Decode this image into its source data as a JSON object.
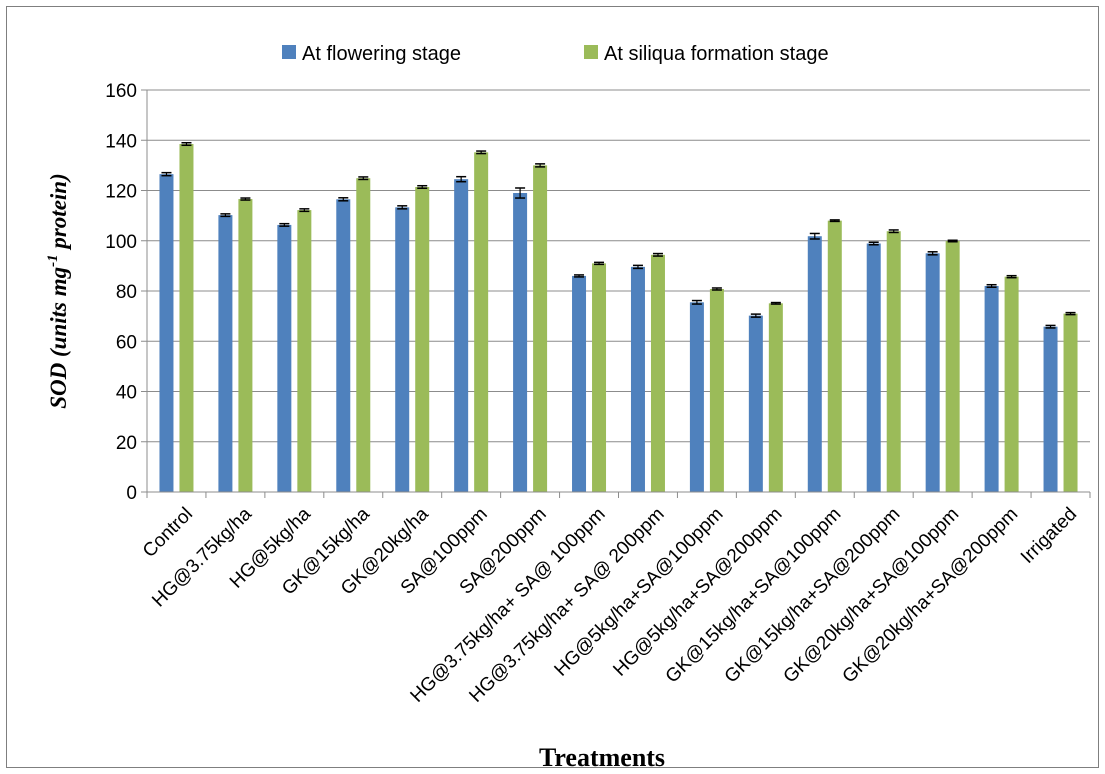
{
  "chart_data": {
    "type": "bar",
    "title": "",
    "xlabel": "Treatments",
    "ylabel_main": "SOD (units mg",
    "ylabel_sup": "-1",
    "ylabel_tail": " protein)",
    "ylim": [
      0,
      160
    ],
    "yticks": [
      0,
      20,
      40,
      60,
      80,
      100,
      120,
      140,
      160
    ],
    "grid": true,
    "legend_position": "top",
    "categories": [
      "Control",
      "HG@3.75kg/ha",
      "HG@5kg/ha",
      "GK@15kg/ha",
      "GK@20kg/ha",
      "SA@100ppm",
      "SA@200ppm",
      "HG@3.75kg/ha+ SA@ 100ppm",
      "HG@3.75kg/ha+ SA@ 200ppm",
      "HG@5kg/ha+SA@100ppm",
      "HG@5kg/ha+SA@200ppm",
      "GK@15kg/ha+SA@100ppm",
      "GK@15kg/ha+SA@200ppm",
      "GK@20kg/ha+SA@100ppm",
      "GK@20kg/ha+SA@200ppm",
      "Irrigated"
    ],
    "series": [
      {
        "name": "At flowering stage",
        "color": "#4f81bd",
        "values": [
          126.5,
          110.2,
          106.3,
          116.5,
          113.3,
          124.5,
          119,
          86,
          89.6,
          75.5,
          70.2,
          101.8,
          98.9,
          95,
          82,
          65.8
        ],
        "errors": [
          0.6,
          0.5,
          0.5,
          0.6,
          0.6,
          1.0,
          2.0,
          0.4,
          0.6,
          0.7,
          0.6,
          1.1,
          0.5,
          0.6,
          0.5,
          0.5
        ]
      },
      {
        "name": "At siliqua formation stage",
        "color": "#9bbb59",
        "values": [
          138.5,
          116.6,
          112.2,
          124.9,
          121.4,
          135.2,
          130,
          91,
          94.4,
          80.8,
          75.1,
          108,
          103.8,
          99.9,
          85.7,
          71
        ],
        "errors": [
          0.5,
          0.4,
          0.5,
          0.5,
          0.5,
          0.5,
          0.6,
          0.4,
          0.5,
          0.4,
          0.3,
          0.3,
          0.5,
          0.3,
          0.4,
          0.4
        ]
      }
    ]
  }
}
